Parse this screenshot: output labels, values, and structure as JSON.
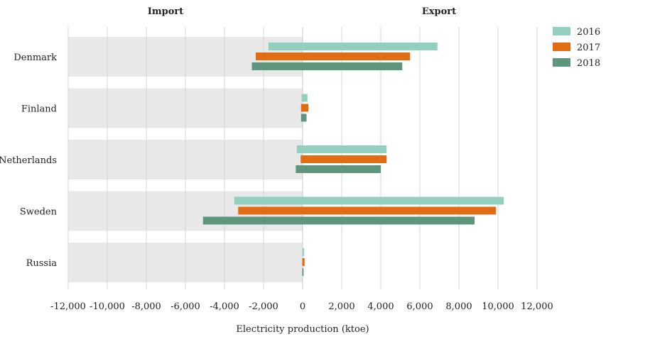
{
  "header": {
    "import_label": "Import",
    "export_label": "Export"
  },
  "chart_data": {
    "type": "bar",
    "orientation": "horizontal",
    "title": "",
    "xlabel": "Electricity production (ktoe)",
    "ylabel": "",
    "xlim": [
      -12000,
      12000
    ],
    "grid": true,
    "legend_position": "top-right",
    "categories": [
      "Denmark",
      "Finland",
      "Netherlands",
      "Sweden",
      "Russia"
    ],
    "x_ticks": [
      -12000,
      -10000,
      -8000,
      -6000,
      -4000,
      -2000,
      0,
      2000,
      4000,
      6000,
      8000,
      10000,
      12000
    ],
    "x_tick_labels": [
      "-12,000",
      "-10,000",
      "-8,000",
      "-6,000",
      "-4,000",
      "-2,000",
      "0",
      "2,000",
      "4,000",
      "6,000",
      "8,000",
      "10,000",
      "12,000"
    ],
    "series": [
      {
        "name": "2016",
        "color": "#93cfc0",
        "import": [
          -1750,
          -50,
          -300,
          -3500,
          -20
        ],
        "export": [
          6900,
          250,
          4300,
          10300,
          80
        ]
      },
      {
        "name": "2017",
        "color": "#e06c13",
        "import": [
          -2400,
          -80,
          -100,
          -3300,
          -20
        ],
        "export": [
          5500,
          300,
          4300,
          9900,
          100
        ]
      },
      {
        "name": "2018",
        "color": "#5e957d",
        "import": [
          -2600,
          -80,
          -350,
          -5100,
          -20
        ],
        "export": [
          5100,
          200,
          4000,
          8800,
          50
        ]
      }
    ]
  }
}
